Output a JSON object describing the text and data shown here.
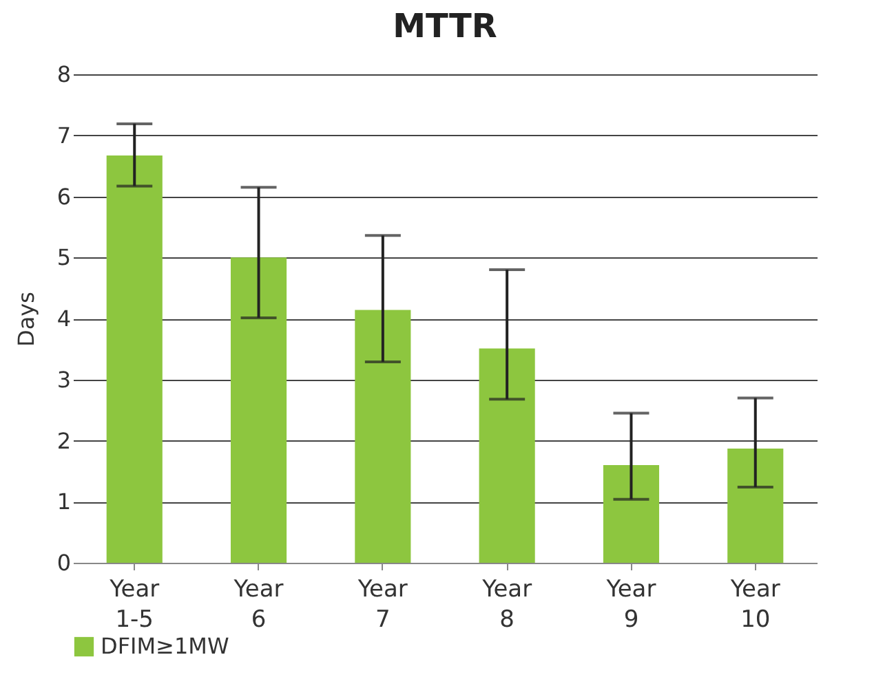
{
  "chart_data": {
    "type": "bar",
    "title": "MTTR",
    "ylabel": "Days",
    "categories": [
      "Year 1-5",
      "Year 6",
      "Year 7",
      "Year 8",
      "Year 9",
      "Year 10"
    ],
    "series": [
      {
        "name": "DFIM≥1MW",
        "color": "#8dc63f",
        "values": [
          6.67,
          5.0,
          4.14,
          3.51,
          1.6,
          1.87
        ],
        "errors": [
          [
            6.17,
            7.19
          ],
          [
            4.01,
            6.15
          ],
          [
            3.29,
            5.36
          ],
          [
            2.68,
            4.8
          ],
          [
            1.04,
            2.45
          ],
          [
            1.24,
            2.7
          ]
        ]
      }
    ],
    "ylim": [
      0,
      8
    ],
    "yticks": [
      0,
      1,
      2,
      3,
      4,
      5,
      6,
      7,
      8
    ],
    "grid": "y",
    "legend": "bottom"
  }
}
